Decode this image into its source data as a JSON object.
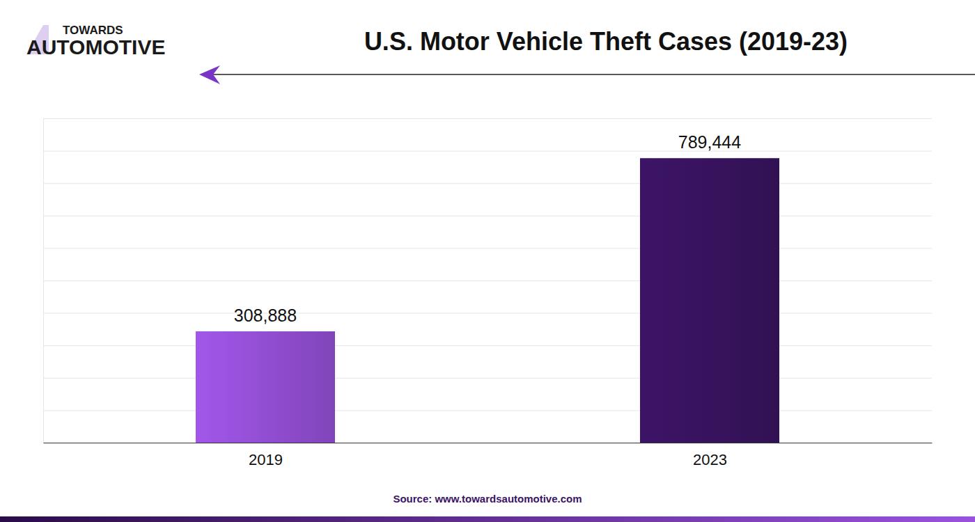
{
  "chart_data": {
    "type": "bar",
    "title": "U.S. Motor Vehicle Theft Cases (2019-23)",
    "categories": [
      "2019",
      "2023"
    ],
    "values": [
      308888,
      789444
    ],
    "value_labels": [
      "308,888",
      "789,444"
    ],
    "colors": [
      "#9a52de",
      "#3a1463"
    ],
    "ylim": [
      0,
      900000
    ],
    "yticks": [
      0,
      90000,
      180000,
      270000,
      360000,
      450000,
      540000,
      630000,
      720000,
      810000,
      900000
    ],
    "grid": true,
    "data_labels": true,
    "tick_labels": "x",
    "annotations": [
      "TOWARDS",
      "AUTOMOTIVE",
      "Source: www.towardsautomotive.com"
    ]
  }
}
